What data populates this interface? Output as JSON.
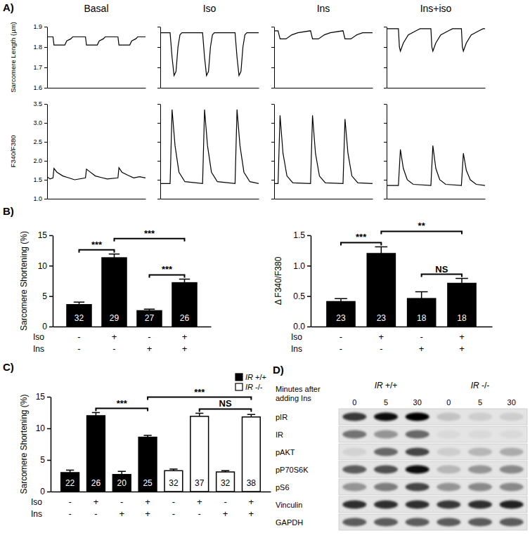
{
  "panel_labels": [
    "A)",
    "B)",
    "C)",
    "D)"
  ],
  "chart_data": [
    {
      "type": "line",
      "title": "Basal",
      "y_label": "Sarcomere Length (µm)",
      "color": "#000000",
      "x": [
        0,
        6,
        7,
        18,
        20,
        24,
        26,
        39,
        40,
        51,
        53,
        57,
        59,
        72,
        73,
        84,
        86,
        90,
        92,
        100
      ],
      "values": [
        1.85,
        1.85,
        1.81,
        1.81,
        1.83,
        1.84,
        1.85,
        1.85,
        1.81,
        1.81,
        1.83,
        1.84,
        1.85,
        1.85,
        1.81,
        1.81,
        1.83,
        1.84,
        1.85,
        1.85
      ],
      "xlim": [
        0,
        100
      ],
      "xticks": [],
      "ylim": [
        1.6,
        1.9
      ],
      "yticks": [
        1.6,
        1.7,
        1.8,
        1.9
      ],
      "tick_labels": "y"
    },
    {
      "type": "line",
      "title": "Iso",
      "color": "#000000",
      "x": [
        0,
        10,
        12,
        14,
        16,
        18,
        20,
        22,
        43,
        45,
        47,
        49,
        51,
        53,
        55,
        76,
        78,
        80,
        82,
        84,
        86,
        88,
        100
      ],
      "values": [
        1.87,
        1.87,
        1.75,
        1.66,
        1.68,
        1.8,
        1.86,
        1.87,
        1.87,
        1.75,
        1.66,
        1.68,
        1.8,
        1.86,
        1.87,
        1.87,
        1.75,
        1.66,
        1.68,
        1.8,
        1.86,
        1.87,
        1.87
      ],
      "xlim": [
        0,
        100
      ],
      "xticks": [],
      "ylim": [
        1.6,
        1.9
      ],
      "yticks": [
        1.6,
        1.7,
        1.8,
        1.9
      ],
      "tick_labels": false
    },
    {
      "type": "line",
      "title": "Ins",
      "color": "#000000",
      "x": [
        0,
        4,
        6,
        12,
        18,
        24,
        37,
        39,
        45,
        51,
        57,
        70,
        72,
        78,
        84,
        90,
        100
      ],
      "values": [
        1.88,
        1.88,
        1.84,
        1.84,
        1.86,
        1.87,
        1.88,
        1.84,
        1.84,
        1.86,
        1.87,
        1.88,
        1.84,
        1.84,
        1.86,
        1.87,
        1.87
      ],
      "xlim": [
        0,
        100
      ],
      "xticks": [],
      "ylim": [
        1.6,
        1.9
      ],
      "yticks": [
        1.6,
        1.7,
        1.8,
        1.9
      ],
      "tick_labels": false
    },
    {
      "type": "line",
      "title": "Ins+iso",
      "color": "#000000",
      "x": [
        0,
        12,
        13,
        14,
        17,
        22,
        30,
        34,
        45,
        46,
        47,
        50,
        55,
        63,
        67,
        76,
        77,
        78,
        81,
        86,
        94,
        98,
        100
      ],
      "values": [
        1.89,
        1.89,
        1.8,
        1.78,
        1.82,
        1.86,
        1.88,
        1.89,
        1.89,
        1.8,
        1.78,
        1.82,
        1.86,
        1.88,
        1.89,
        1.89,
        1.8,
        1.78,
        1.82,
        1.86,
        1.88,
        1.89,
        1.89
      ],
      "xlim": [
        0,
        100
      ],
      "xticks": [],
      "ylim": [
        1.6,
        1.9
      ],
      "yticks": [
        1.6,
        1.7,
        1.8,
        1.9
      ],
      "tick_labels": false
    },
    {
      "type": "line",
      "y_label": "F340/F380",
      "color": "#000000",
      "x": [
        0,
        3,
        6,
        7,
        10,
        16,
        22,
        28,
        39,
        40,
        43,
        49,
        55,
        61,
        72,
        73,
        76,
        82,
        88,
        94,
        100
      ],
      "values": [
        1.58,
        1.52,
        1.55,
        1.8,
        1.7,
        1.6,
        1.55,
        1.5,
        1.55,
        1.78,
        1.72,
        1.6,
        1.56,
        1.52,
        1.55,
        1.82,
        1.7,
        1.62,
        1.55,
        1.58,
        1.55
      ],
      "xlim": [
        0,
        100
      ],
      "xticks": [],
      "ylim": [
        1,
        3.5
      ],
      "yticks": [
        {
          "value": 1,
          "label": "1.0"
        },
        1.5,
        {
          "value": 2,
          "label": "2.0"
        },
        2.5,
        {
          "value": 3,
          "label": "3.0"
        },
        3.5
      ],
      "tick_labels": "y"
    },
    {
      "type": "line",
      "color": "#000000",
      "x": [
        0,
        10,
        12,
        15,
        19,
        25,
        43,
        45,
        48,
        52,
        58,
        76,
        78,
        81,
        85,
        91,
        100
      ],
      "values": [
        1.4,
        1.4,
        3.35,
        2.4,
        1.7,
        1.45,
        1.4,
        3.35,
        2.4,
        1.7,
        1.45,
        1.4,
        3.35,
        2.4,
        1.7,
        1.45,
        1.4
      ],
      "xlim": [
        0,
        100
      ],
      "xticks": [],
      "ylim": [
        1,
        3.5
      ],
      "yticks": [
        {
          "value": 1,
          "label": "1.0"
        },
        1.5,
        {
          "value": 2,
          "label": "2.0"
        },
        2.5,
        {
          "value": 3,
          "label": "3.0"
        },
        3.5
      ],
      "tick_labels": false
    },
    {
      "type": "line",
      "color": "#000000",
      "x": [
        0,
        4,
        6,
        9,
        13,
        19,
        37,
        39,
        42,
        46,
        52,
        70,
        72,
        75,
        79,
        85,
        100
      ],
      "values": [
        1.4,
        1.4,
        3.2,
        2.2,
        1.6,
        1.42,
        1.4,
        3.2,
        2.2,
        1.6,
        1.42,
        1.4,
        3.1,
        2.2,
        1.6,
        1.42,
        1.4
      ],
      "xlim": [
        0,
        100
      ],
      "xticks": [],
      "ylim": [
        1,
        3.5
      ],
      "yticks": [
        {
          "value": 1,
          "label": "1.0"
        },
        1.5,
        {
          "value": 2,
          "label": "2.0"
        },
        2.5,
        {
          "value": 3,
          "label": "3.0"
        },
        3.5
      ],
      "tick_labels": false
    },
    {
      "type": "line",
      "color": "#000000",
      "x": [
        0,
        12,
        14,
        17,
        21,
        27,
        45,
        47,
        50,
        54,
        60,
        76,
        78,
        81,
        85,
        91,
        100
      ],
      "values": [
        1.35,
        1.35,
        2.3,
        1.8,
        1.5,
        1.38,
        1.35,
        2.4,
        1.8,
        1.5,
        1.38,
        1.35,
        2.2,
        1.75,
        1.5,
        1.38,
        1.35
      ],
      "xlim": [
        0,
        100
      ],
      "xticks": [],
      "ylim": [
        1,
        3.5
      ],
      "yticks": [
        {
          "value": 1,
          "label": "1.0"
        },
        1.5,
        {
          "value": 2,
          "label": "2.0"
        },
        2.5,
        {
          "value": 3,
          "label": "3.0"
        },
        3.5
      ],
      "tick_labels": false
    },
    {
      "type": "bar",
      "y_label": "Sarcomere Shortening (%)",
      "color": "#000000",
      "categories": [
        null,
        null,
        null,
        null
      ],
      "values": [
        3.6,
        11.3,
        2.6,
        7.2
      ],
      "errors": [
        0.4,
        0.6,
        0.25,
        0.6
      ],
      "n": [
        32,
        29,
        27,
        26
      ],
      "ylim": [
        0,
        15
      ],
      "yticks": [
        0,
        5,
        10,
        15
      ],
      "conditions": [
        {
          "name": "Iso",
          "values": [
            "-",
            "+",
            "-",
            "+"
          ]
        },
        {
          "name": "Ins",
          "values": [
            "-",
            "-",
            "+",
            "+"
          ]
        }
      ],
      "annotations": [
        {
          "from": 0,
          "to": 1,
          "text": "***"
        },
        {
          "from": 1,
          "to": 3,
          "text": "***"
        },
        {
          "from": 2,
          "to": 3,
          "text": "***"
        }
      ]
    },
    {
      "type": "bar",
      "y_label": "Δ F340/F380",
      "color": "#000000",
      "categories": [
        null,
        null,
        null,
        null
      ],
      "values": [
        0.41,
        1.2,
        0.46,
        0.71
      ],
      "errors": [
        0.05,
        0.11,
        0.11,
        0.08
      ],
      "n": [
        23,
        23,
        18,
        18
      ],
      "ylim": [
        0,
        1.5
      ],
      "yticks": [
        {
          "value": 0,
          "label": "0.0"
        },
        0.5,
        {
          "value": 1,
          "label": "1.0"
        },
        1.5
      ],
      "conditions": [
        {
          "name": "Iso",
          "values": [
            "-",
            "+",
            "-",
            "+"
          ]
        },
        {
          "name": "Ins",
          "values": [
            "-",
            "-",
            "+",
            "+"
          ]
        }
      ],
      "annotations": [
        {
          "from": 0,
          "to": 1,
          "text": "***"
        },
        {
          "from": 1,
          "to": 3,
          "text": "**"
        },
        {
          "from": 2,
          "to": 3,
          "text": "NS"
        }
      ]
    },
    {
      "type": "bar",
      "y_label": "Sarcomere Shortening (%)",
      "legend": "top-right",
      "categories": [
        null,
        null,
        null,
        null,
        null,
        null,
        null,
        null
      ],
      "series": [
        {
          "name": "IR +/+",
          "color": "#000000",
          "values": [
            3.0,
            12.0,
            2.7,
            8.6,
            null,
            null,
            null,
            null
          ],
          "errors": [
            0.4,
            0.5,
            0.5,
            0.3,
            null,
            null,
            null,
            null
          ],
          "n": [
            22,
            26,
            20,
            25,
            null,
            null,
            null,
            null
          ]
        },
        {
          "name": "IR -/-",
          "color": "#ffffff",
          "values": [
            null,
            null,
            null,
            null,
            3.3,
            11.9,
            3.1,
            11.8
          ],
          "errors": [
            null,
            null,
            null,
            null,
            0.25,
            0.5,
            0.2,
            0.4
          ],
          "n": [
            null,
            null,
            null,
            null,
            32,
            37,
            32,
            38
          ]
        }
      ],
      "ylim": [
        0,
        15
      ],
      "yticks": [
        0,
        5,
        10,
        15
      ],
      "conditions": [
        {
          "name": "Iso",
          "values": [
            "-",
            "+",
            "-",
            "+",
            "-",
            "+",
            "-",
            "+"
          ]
        },
        {
          "name": "Ins",
          "values": [
            "-",
            "-",
            "+",
            "+",
            "-",
            "-",
            "+",
            "+"
          ]
        }
      ],
      "annotations": [
        {
          "from": 1,
          "to": 3,
          "text": "***"
        },
        {
          "from": 3,
          "to": 7,
          "text": "***"
        },
        {
          "from": 5,
          "to": 7,
          "text": "NS"
        }
      ]
    }
  ],
  "blot": {
    "type": "western_blot",
    "groups": [
      "IR +/+",
      "IR -/-"
    ],
    "time_label": "Minutes after adding Ins",
    "times": [
      0,
      5,
      30,
      0,
      5,
      30
    ],
    "rows": [
      {
        "label": "pIR",
        "intensity": [
          0.75,
          0.95,
          1.0,
          0.15,
          0.1,
          0.1
        ]
      },
      {
        "label": "IR",
        "intensity": [
          0.5,
          0.35,
          0.55,
          0.05,
          0.05,
          0.05
        ]
      },
      {
        "label": "pAKT",
        "intensity": [
          0.08,
          0.55,
          0.7,
          0.1,
          0.2,
          0.25
        ]
      },
      {
        "label": "pP70S6K",
        "intensity": [
          0.6,
          0.65,
          0.95,
          0.2,
          0.35,
          0.4
        ]
      },
      {
        "label": "pS6",
        "intensity": [
          0.35,
          0.45,
          0.7,
          0.35,
          0.4,
          0.4
        ]
      },
      {
        "label": "Vinculin",
        "intensity": [
          0.8,
          0.8,
          0.8,
          0.75,
          0.8,
          0.85
        ]
      },
      {
        "label": "GAPDH",
        "intensity": [
          0.6,
          0.6,
          0.6,
          0.6,
          0.6,
          0.6
        ]
      }
    ]
  }
}
